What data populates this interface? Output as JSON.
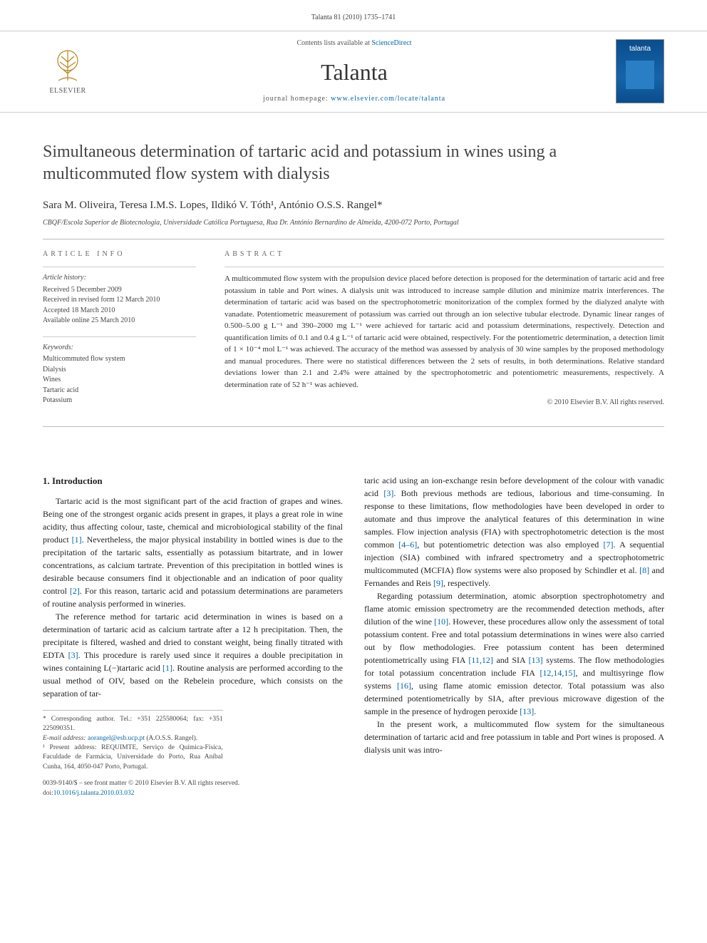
{
  "header": {
    "running_head": "Talanta 81 (2010) 1735–1741"
  },
  "masthead": {
    "publisher": "ELSEVIER",
    "contents_prefix": "Contents lists available at ",
    "contents_link": "ScienceDirect",
    "journal_title": "Talanta",
    "homepage_prefix": "journal homepage: ",
    "homepage_url": "www.elsevier.com/locate/talanta",
    "cover_label": "talanta"
  },
  "article": {
    "title": "Simultaneous determination of tartaric acid and potassium in wines using a multicommuted flow system with dialysis",
    "authors_html": "Sara M. Oliveira, Teresa I.M.S. Lopes, Ildikó V. Tóth¹, António O.S.S. Rangel*",
    "affiliation": "CBQF/Escola Superior de Biotecnologia, Universidade Católica Portuguesa, Rua Dr. António Bernardino de Almeida, 4200-072 Porto, Portugal"
  },
  "article_info": {
    "label": "article info",
    "history_label": "Article history:",
    "history": [
      "Received 5 December 2009",
      "Received in revised form 12 March 2010",
      "Accepted 18 March 2010",
      "Available online 25 March 2010"
    ],
    "keywords_label": "Keywords:",
    "keywords": [
      "Multicommuted flow system",
      "Dialysis",
      "Wines",
      "Tartaric acid",
      "Potassium"
    ]
  },
  "abstract": {
    "label": "abstract",
    "text": "A multicommuted flow system with the propulsion device placed before detection is proposed for the determination of tartaric acid and free potassium in table and Port wines. A dialysis unit was introduced to increase sample dilution and minimize matrix interferences. The determination of tartaric acid was based on the spectrophotometric monitorization of the complex formed by the dialyzed analyte with vanadate. Potentiometric measurement of potassium was carried out through an ion selective tubular electrode. Dynamic linear ranges of 0.500–5.00 g L⁻¹ and 390–2000 mg L⁻¹ were achieved for tartaric acid and potassium determinations, respectively. Detection and quantification limits of 0.1 and 0.4 g L⁻¹ of tartaric acid were obtained, respectively. For the potentiometric determination, a detection limit of 1 × 10⁻⁴ mol L⁻¹ was achieved. The accuracy of the method was assessed by analysis of 30 wine samples by the proposed methodology and manual procedures. There were no statistical differences between the 2 sets of results, in both determinations. Relative standard deviations lower than 2.1 and 2.4% were attained by the spectrophotometric and potentiometric measurements, respectively. A determination rate of 52 h⁻¹ was achieved.",
    "copyright": "© 2010 Elsevier B.V. All rights reserved."
  },
  "body": {
    "section_heading": "1. Introduction",
    "left_paragraphs": [
      "Tartaric acid is the most significant part of the acid fraction of grapes and wines. Being one of the strongest organic acids present in grapes, it plays a great role in wine acidity, thus affecting colour, taste, chemical and microbiological stability of the final product [1]. Nevertheless, the major physical instability in bottled wines is due to the precipitation of the tartaric salts, essentially as potassium bitartrate, and in lower concentrations, as calcium tartrate. Prevention of this precipitation in bottled wines is desirable because consumers find it objectionable and an indication of poor quality control [2]. For this reason, tartaric acid and potassium determinations are parameters of routine analysis performed in wineries.",
      "The reference method for tartaric acid determination in wines is based on a determination of tartaric acid as calcium tartrate after a 12 h precipitation. Then, the precipitate is filtered, washed and dried to constant weight, being finally titrated with EDTA [3]. This procedure is rarely used since it requires a double precipitation in wines containing L(−)tartaric acid [1]. Routine analysis are performed according to the usual method of OIV, based on the Rebelein procedure, which consists on the separation of tar-"
    ],
    "right_paragraphs": [
      "taric acid using an ion-exchange resin before development of the colour with vanadic acid [3]. Both previous methods are tedious, laborious and time-consuming. In response to these limitations, flow methodologies have been developed in order to automate and thus improve the analytical features of this determination in wine samples. Flow injection analysis (FIA) with spectrophotometric detection is the most common [4–6], but potentiometric detection was also employed [7]. A sequential injection (SIA) combined with infrared spectrometry and a spectrophotometric multicommuted (MCFIA) flow systems were also proposed by Schindler et al. [8] and Fernandes and Reis [9], respectively.",
      "Regarding potassium determination, atomic absorption spectrophotometry and flame atomic emission spectrometry are the recommended detection methods, after dilution of the wine [10]. However, these procedures allow only the assessment of total potassium content. Free and total potassium determinations in wines were also carried out by flow methodologies. Free potassium content has been determined potentiometrically using FIA [11,12] and SIA [13] systems. The flow methodologies for total potassium concentration include FIA [12,14,15], and multisyringe flow systems [16], using flame atomic emission detector. Total potassium was also determined potentiometrically by SIA, after previous microwave digestion of the sample in the presence of hydrogen peroxide [13].",
      "In the present work, a multicommuted flow system for the simultaneous determination of tartaric acid and free potassium in table and Port wines is proposed. A dialysis unit was intro-"
    ]
  },
  "footnotes": {
    "corr": "* Corresponding author. Tel.: +351 225580064; fax: +351 225090351.",
    "email_label": "E-mail address: ",
    "email": "aorangel@esb.ucp.pt",
    "email_owner": " (A.O.S.S. Rangel).",
    "present": "¹ Present address: REQUIMTE, Serviço de Química-Física, Faculdade de Farmácia, Universidade do Porto, Rua Aníbal Cunha, 164, 4050-047 Porto, Portugal."
  },
  "footer": {
    "issn": "0039-9140/$ – see front matter © 2010 Elsevier B.V. All rights reserved.",
    "doi_label": "doi:",
    "doi": "10.1016/j.talanta.2010.03.032"
  },
  "colors": {
    "link": "#0066aa",
    "rule": "#bbbbbb",
    "text": "#333333",
    "cover_bg": "#0a4d8c"
  },
  "typography": {
    "title_fontsize": 24,
    "journal_title_fontsize": 32,
    "body_fontsize": 12,
    "abstract_fontsize": 11,
    "small_fontsize": 10
  }
}
